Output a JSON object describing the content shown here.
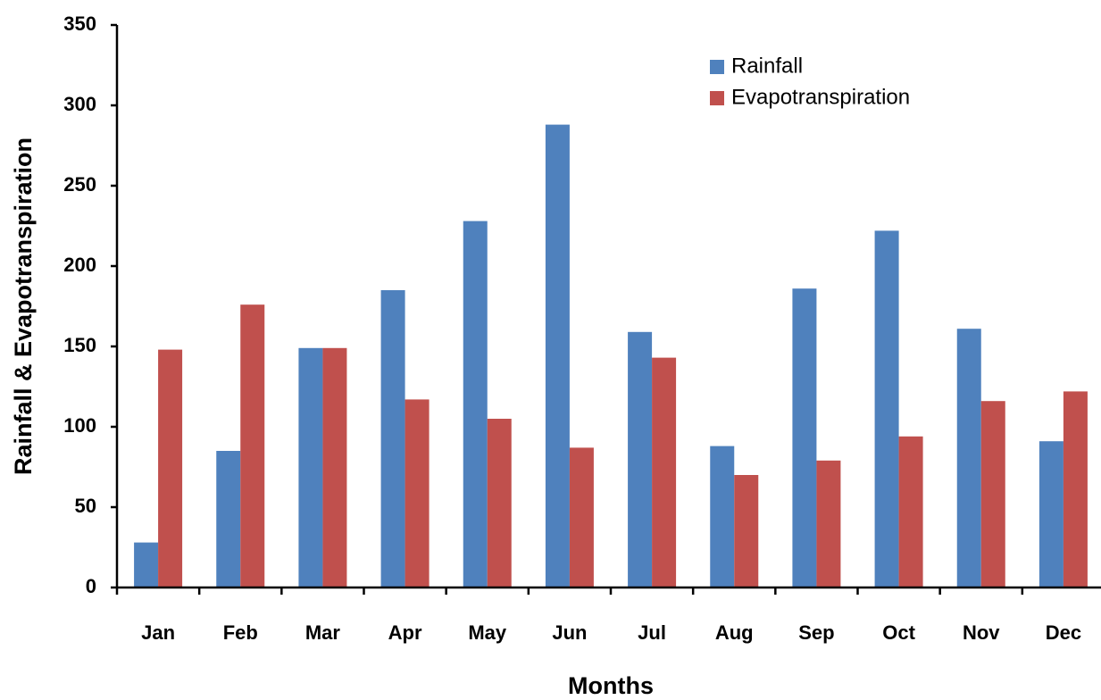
{
  "chart_data": {
    "type": "bar",
    "x_label": "Months",
    "y_label": "Rainfall & Evapotranspiration",
    "categories": [
      "Jan",
      "Feb",
      "Mar",
      "Apr",
      "May",
      "Jun",
      "Jul",
      "Aug",
      "Sep",
      "Oct",
      "Nov",
      "Dec"
    ],
    "series": [
      {
        "name": "Rainfall",
        "color": "#4f81bd",
        "values": [
          28,
          85,
          149,
          185,
          228,
          288,
          159,
          88,
          186,
          222,
          161,
          91
        ]
      },
      {
        "name": "Evapotranspiration",
        "color": "#c0504d",
        "values": [
          148,
          176,
          149,
          117,
          105,
          87,
          143,
          70,
          79,
          94,
          116,
          122
        ]
      }
    ],
    "ylim": [
      0,
      350
    ],
    "yticks": [
      0,
      50,
      100,
      150,
      200,
      250,
      300,
      350
    ],
    "grid": false,
    "legend": "upper right"
  }
}
